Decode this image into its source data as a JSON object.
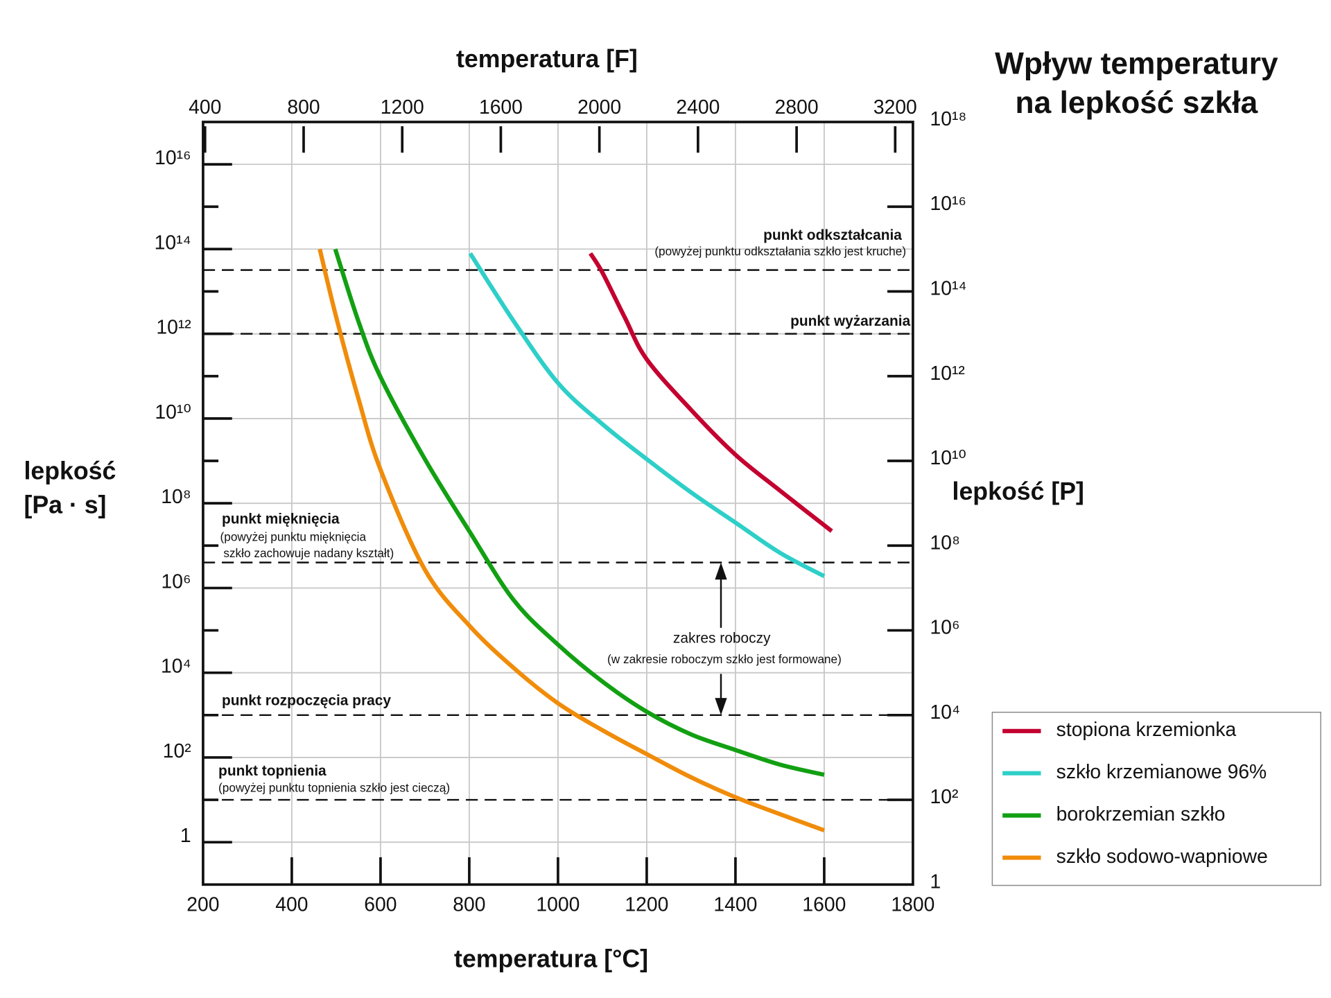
{
  "chart_data": {
    "type": "line",
    "title": [
      "Wpływ temperatury",
      "na lepkość szkła"
    ],
    "xlabel": "temperatura [°C]",
    "x2label": "temperatura [F]",
    "ylabel": [
      "lepkość",
      "[Pa · s]"
    ],
    "y2label": "lepkość [P]",
    "xlim": [
      200,
      1800
    ],
    "xticks": [
      200,
      400,
      600,
      800,
      1000,
      1200,
      1400,
      1600,
      1800
    ],
    "x2lim": [
      392,
      3272
    ],
    "x2ticks": [
      400,
      800,
      1200,
      1600,
      2000,
      2400,
      2800,
      3200
    ],
    "yscale": "log",
    "ylim": [
      0.1,
      1e+17
    ],
    "yticks": [
      1,
      {
        "value": 100,
        "label": "10²"
      },
      {
        "value": 10000,
        "label": "10⁴"
      },
      {
        "value": 1000000,
        "label": "10⁶"
      },
      {
        "value": 100000000,
        "label": "10⁸"
      },
      {
        "value": 10000000000.0,
        "label": "10¹⁰"
      },
      {
        "value": 1000000000000.0,
        "label": "10¹²"
      },
      {
        "value": 100000000000000.0,
        "label": "10¹⁴"
      },
      {
        "value": 1e+16,
        "label": "10¹⁶"
      }
    ],
    "yminorticks": [
      10,
      1000,
      100000,
      10000000,
      1000000000,
      100000000000.0,
      10000000000000.0,
      1000000000000000.0
    ],
    "y2lim": [
      1,
      1e+18
    ],
    "y2ticks": [
      1,
      {
        "value": 100,
        "label": "10²"
      },
      {
        "value": 10000,
        "label": "10⁴"
      },
      {
        "value": 1000000,
        "label": "10⁶"
      },
      {
        "value": 100000000,
        "label": "10⁸"
      },
      {
        "value": 10000000000.0,
        "label": "10¹⁰"
      },
      {
        "value": 1000000000000.0,
        "label": "10¹²"
      },
      {
        "value": 100000000000000.0,
        "label": "10¹⁴"
      },
      {
        "value": 1e+16,
        "label": "10¹⁶"
      },
      {
        "value": 1e+18,
        "label": "10¹⁸"
      }
    ],
    "grid": true,
    "legend": "outside-lower-right",
    "series": [
      {
        "name": "stopiona krzemionka",
        "color": "#c3002f",
        "x": [
          1073,
          1100,
          1150,
          1200,
          1300,
          1400,
          1500,
          1617
        ],
        "values": [
          79000000000000.0,
          28000000000000.0,
          2500000000000.0,
          250000000000.0,
          16000000000.0,
          1400000000.0,
          200000000.0,
          22000000.0
        ]
      },
      {
        "name": "szkło krzemianowe 96%",
        "color": "#2ecfc8",
        "x": [
          802,
          900,
          1000,
          1100,
          1200,
          1300,
          1400,
          1500,
          1600
        ],
        "values": [
          79000000000000.0,
          2000000000000.0,
          69000000000.0,
          7400000000.0,
          1100000000.0,
          180000000.0,
          35000000.0,
          6800000.0,
          1900000.0
        ]
      },
      {
        "name": "borokrzemian szkło",
        "color": "#12a012",
        "x": [
          498,
          550,
          600,
          700,
          800,
          900,
          1000,
          1100,
          1200,
          1300,
          1400,
          1500,
          1600
        ],
        "values": [
          100000000000000.0,
          2000000000000.0,
          95000000000.0,
          1100000000.0,
          22000000.0,
          520000,
          46000,
          6200,
          1200,
          350,
          150,
          68,
          39
        ]
      },
      {
        "name": "szkło sodowo-wapniowe",
        "color": "#f08c0a",
        "x": [
          463,
          500,
          550,
          600,
          700,
          800,
          900,
          1000,
          1100,
          1200,
          1300,
          1400,
          1500,
          1600
        ],
        "values": [
          100000000000000.0,
          2500000000000.0,
          30000000000.0,
          620000000.0,
          2700000.0,
          130000,
          13000,
          1900,
          440,
          120,
          34,
          11.5,
          4.6,
          1.9
        ]
      }
    ],
    "reference_lines": [
      {
        "value": 32000000000000.0,
        "label": "punkt odkształcania",
        "note": [
          "(powyżej punktu odkształania szkło jest kruche)"
        ]
      },
      {
        "value": 1000000000000.0,
        "label": "punkt wyżarzania"
      },
      {
        "value": 4000000.0,
        "label": "punkt mięknięcia",
        "note": [
          "(powyżej punktu mięknięcia",
          " szkło zachowuje nadany kształt)"
        ]
      },
      {
        "value": 1000,
        "label": "punkt rozpoczęcia pracy"
      },
      {
        "value": 10,
        "label": "punkt topnienia",
        "note": [
          "(powyżej punktu topnienia szkło jest cieczą)"
        ]
      }
    ],
    "working_range": {
      "label": "zakres roboczy",
      "note": "(w zakresie roboczym szkło jest formowane)"
    }
  }
}
